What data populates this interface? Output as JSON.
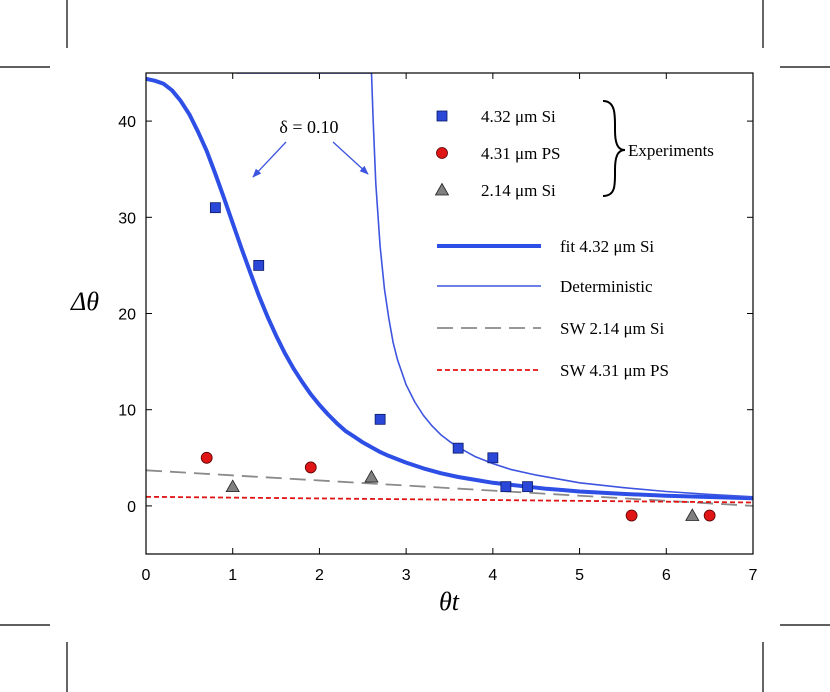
{
  "chart_data": {
    "type": "scatter",
    "xlabel": "θt",
    "ylabel": "Δθ",
    "xlim": [
      0,
      7
    ],
    "ylim": [
      -5,
      45
    ],
    "xticks": [
      "0",
      "1",
      "2",
      "3",
      "4",
      "5",
      "6",
      "7"
    ],
    "yticks": [
      "0",
      "10",
      "20",
      "30",
      "40"
    ],
    "annotation": "δ = 0.10",
    "experiments_label": "Experiments",
    "colors": {
      "si432": "#2a47d8",
      "ps431": "#e01515",
      "si214": "#808080",
      "fit": "#2e4fe6",
      "deterministic": "#3e55e0",
      "sw214": "#8a8a8a",
      "sw431": "#e01515"
    },
    "scatter_series": [
      {
        "name": "4.32 μm Si",
        "marker": "square",
        "x": [
          0.8,
          1.3,
          2.7,
          3.6,
          4.0,
          4.15,
          4.4
        ],
        "y": [
          31,
          25,
          9,
          6,
          5,
          2,
          2
        ]
      },
      {
        "name": "4.31 μm PS",
        "marker": "circle",
        "x": [
          0.7,
          1.9,
          5.6,
          6.5
        ],
        "y": [
          5,
          4,
          -1,
          -1
        ]
      },
      {
        "name": "2.14 μm Si",
        "marker": "triangle",
        "x": [
          1.0,
          2.6,
          6.3
        ],
        "y": [
          2,
          3,
          -1
        ]
      }
    ],
    "line_series": [
      {
        "name": "fit 4.32 μm Si",
        "style": "thick-solid",
        "x": [
          0,
          0.1,
          0.2,
          0.3,
          0.4,
          0.5,
          0.6,
          0.7,
          0.8,
          0.9,
          1.0,
          1.1,
          1.2,
          1.3,
          1.4,
          1.5,
          1.6,
          1.7,
          1.8,
          1.9,
          2.0,
          2.1,
          2.2,
          2.3,
          2.4,
          2.5,
          2.6,
          2.7,
          2.8,
          3.0,
          3.2,
          3.4,
          3.6,
          3.8,
          4.0,
          4.2,
          4.4,
          4.6,
          4.8,
          5.0,
          5.5,
          6.0,
          6.5,
          7.0
        ],
        "y": [
          44.4,
          44.2,
          43.9,
          43.2,
          42.1,
          40.7,
          38.9,
          36.9,
          34.5,
          32.0,
          29.4,
          26.8,
          24.3,
          21.9,
          19.7,
          17.7,
          15.9,
          14.3,
          12.9,
          11.6,
          10.5,
          9.5,
          8.6,
          7.8,
          7.2,
          6.6,
          6.1,
          5.6,
          5.2,
          4.5,
          3.9,
          3.4,
          3.0,
          2.7,
          2.4,
          2.2,
          2.0,
          1.8,
          1.65,
          1.5,
          1.25,
          1.05,
          0.92,
          0.8
        ]
      },
      {
        "name": "Deterministic",
        "style": "thin-solid",
        "x": [
          1.04,
          2.6,
          2.62,
          2.65,
          2.7,
          2.75,
          2.8,
          2.85,
          2.9,
          3.0,
          3.1,
          3.2,
          3.3,
          3.4,
          3.5,
          3.6,
          3.8,
          4.0,
          4.2,
          4.5,
          5.0,
          5.5,
          6.0,
          6.5,
          7.0
        ],
        "y": [
          45,
          45,
          40.0,
          33.5,
          27.0,
          22.5,
          19.5,
          17.0,
          15.2,
          12.6,
          10.8,
          9.4,
          8.3,
          7.4,
          6.7,
          6.1,
          5.1,
          4.4,
          3.8,
          3.2,
          2.4,
          1.9,
          1.5,
          1.2,
          0.95
        ]
      },
      {
        "name": "SW 2.14 μm Si",
        "style": "long-dash",
        "x": [
          0,
          7
        ],
        "y": [
          3.7,
          0.0
        ]
      },
      {
        "name": "SW 4.31 μm PS",
        "style": "short-dash",
        "x": [
          0,
          7
        ],
        "y": [
          0.95,
          0.35
        ]
      }
    ],
    "legend": [
      {
        "label": "4.32 μm Si",
        "marker": "square"
      },
      {
        "label": "4.31 μm PS",
        "marker": "circle"
      },
      {
        "label": "2.14 μm Si",
        "marker": "triangle"
      },
      {
        "label": "fit 4.32 μm Si",
        "line": "thick-solid"
      },
      {
        "label": "Deterministic",
        "line": "thin-solid"
      },
      {
        "label": "SW 2.14 μm Si",
        "line": "long-dash"
      },
      {
        "label": "SW 4.31 μm PS",
        "line": "short-dash"
      }
    ]
  }
}
